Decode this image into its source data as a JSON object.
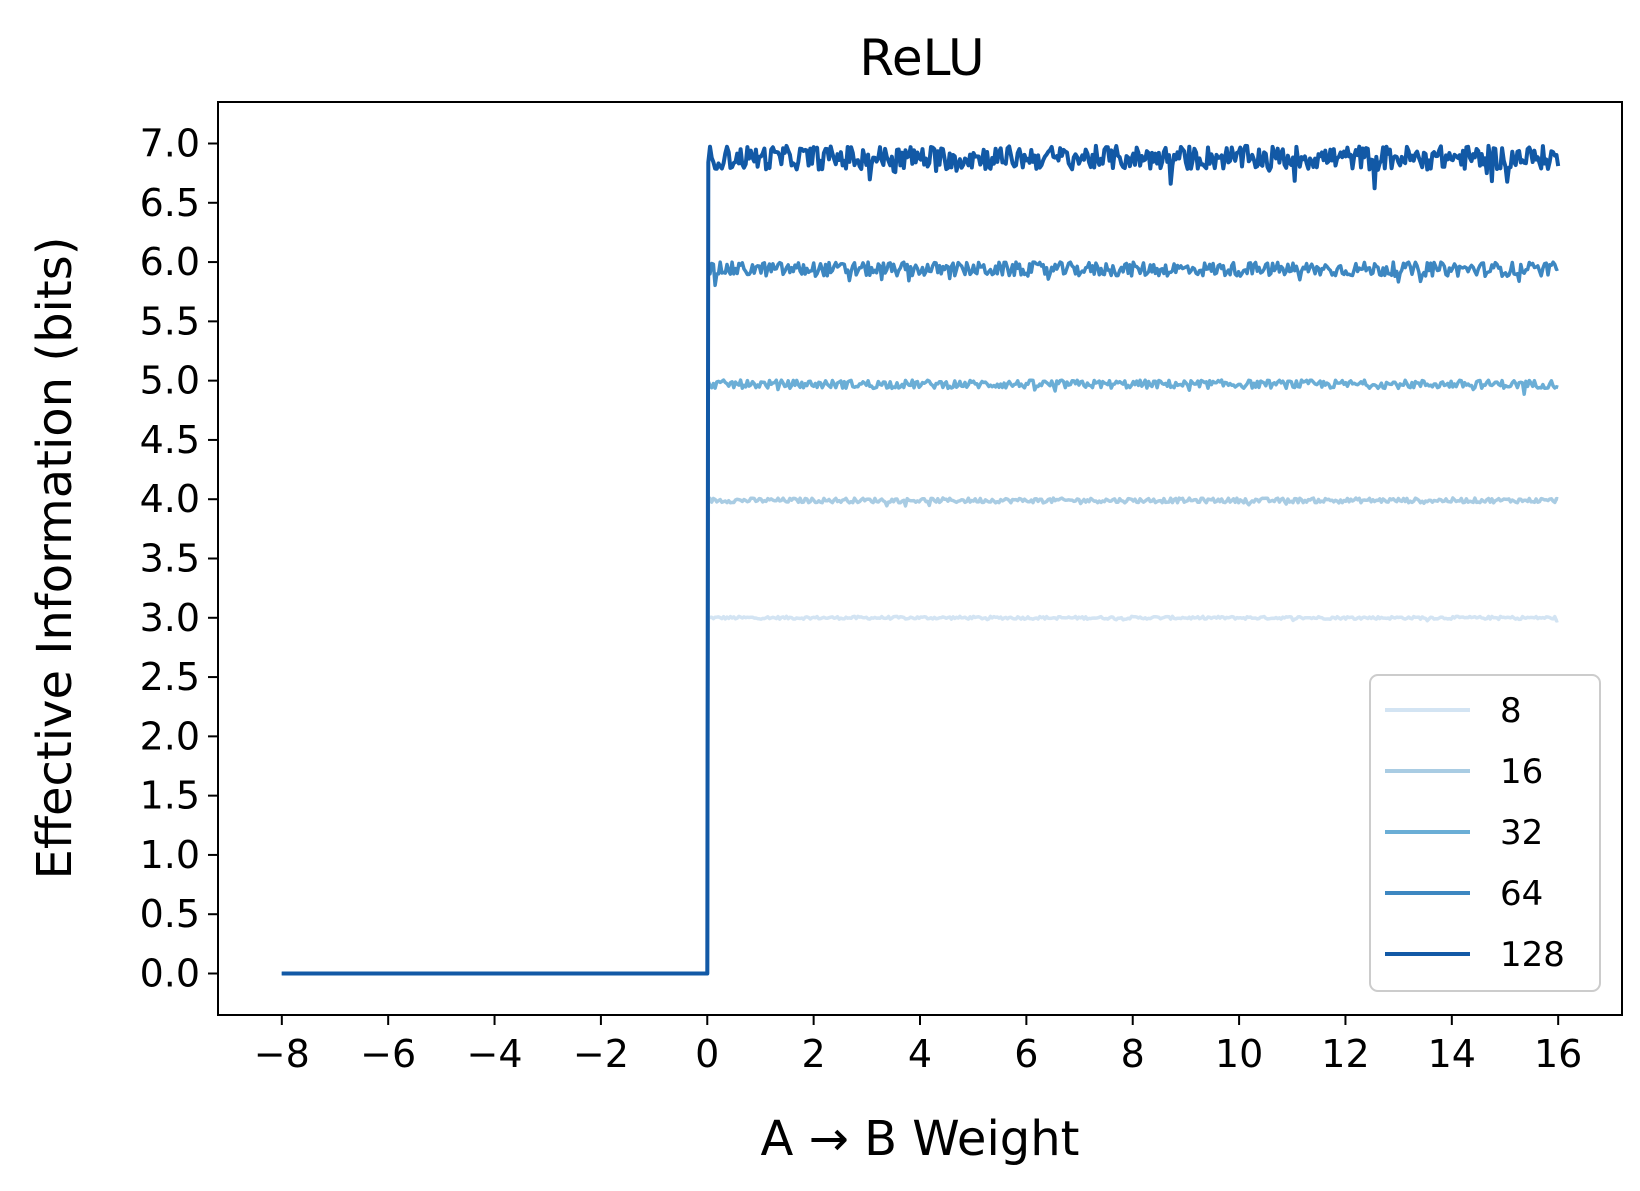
{
  "chart_data": {
    "type": "line",
    "title": "ReLU",
    "xlabel": "A → B Weight",
    "ylabel": "Effective Information (bits)",
    "xlim": [
      -9.2,
      17.2
    ],
    "ylim": [
      -0.35,
      7.35
    ],
    "x_ticks": [
      -8,
      -6,
      -4,
      -2,
      0,
      2,
      4,
      6,
      8,
      10,
      12,
      14,
      16
    ],
    "x_tick_labels": [
      "−8",
      "−6",
      "−4",
      "−2",
      "0",
      "2",
      "4",
      "6",
      "8",
      "10",
      "12",
      "14",
      "16"
    ],
    "y_ticks": [
      0,
      0.5,
      1,
      1.5,
      2,
      2.5,
      3,
      3.5,
      4,
      4.5,
      5,
      5.5,
      6,
      6.5,
      7
    ],
    "y_tick_labels": [
      "0.0",
      "0.5",
      "1.0",
      "1.5",
      "2.0",
      "2.5",
      "3.0",
      "3.5",
      "4.0",
      "4.5",
      "5.0",
      "5.5",
      "6.0",
      "6.5",
      "7.0"
    ],
    "grid": false,
    "legend_position": "lower-right",
    "series": [
      {
        "name": "8",
        "color": "#d3e4f3",
        "plateau": 3.0,
        "noise": 0.012
      },
      {
        "name": "16",
        "color": "#a9cce3",
        "plateau": 3.99,
        "noise": 0.02
      },
      {
        "name": "32",
        "color": "#6baed6",
        "plateau": 4.97,
        "noise": 0.035
      },
      {
        "name": "64",
        "color": "#3d87c1",
        "plateau": 5.94,
        "noise": 0.06
      },
      {
        "name": "128",
        "color": "#1259a6",
        "plateau": 6.88,
        "noise": 0.1
      }
    ],
    "step_x": 0,
    "x_range": [
      -8,
      16
    ],
    "below_zero_value": 0.0
  }
}
